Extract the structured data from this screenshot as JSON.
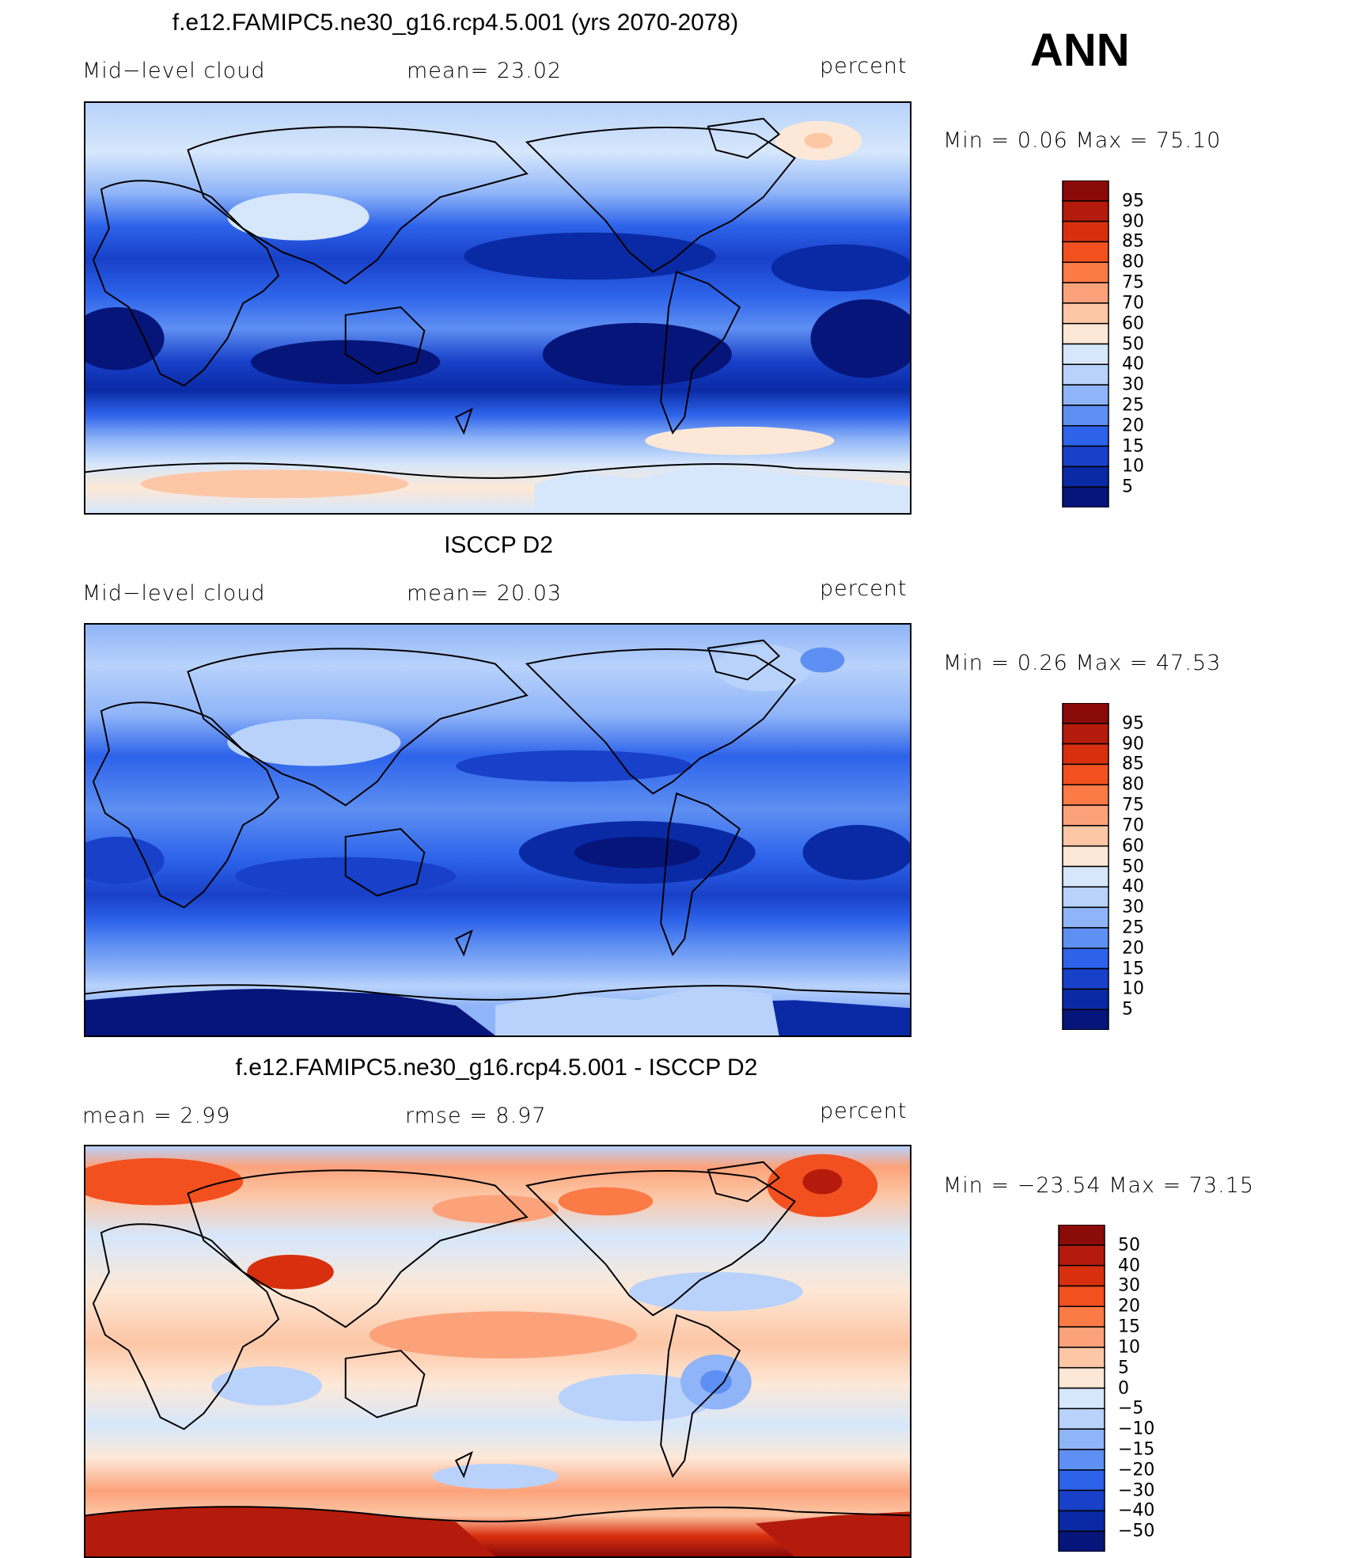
{
  "header": {
    "season": "ANN"
  },
  "panels": [
    {
      "id": "model",
      "title": "f.e12.FAMIPC5.ne30_g16.rcp4.5.001 (yrs 2070-2078)",
      "left_label": "Mid−level cloud",
      "center_label": "mean=   23.02",
      "units": "percent",
      "minmax": "Min  =    0.06  Max  =   75.10",
      "colorbar": {
        "labels": [
          "95",
          "90",
          "85",
          "80",
          "75",
          "70",
          "60",
          "50",
          "40",
          "30",
          "25",
          "20",
          "15",
          "10",
          "5"
        ],
        "colors": [
          "#8b0a0a",
          "#b41b0c",
          "#d8300e",
          "#f2501f",
          "#fb7a46",
          "#fca27a",
          "#fdc6a5",
          "#fde8d7",
          "#d6e7fb",
          "#b8d2fb",
          "#8fb4f8",
          "#5e8ff2",
          "#2d63ea",
          "#1840c8",
          "#0a2aa5",
          "#05157a"
        ]
      }
    },
    {
      "id": "obs",
      "title": "ISCCP D2",
      "left_label": "Mid−level cloud",
      "center_label": "mean=   20.03",
      "units": "percent",
      "minmax": "Min  =    0.26  Max  =   47.53",
      "colorbar": {
        "labels": [
          "95",
          "90",
          "85",
          "80",
          "75",
          "70",
          "60",
          "50",
          "40",
          "30",
          "25",
          "20",
          "15",
          "10",
          "5"
        ],
        "colors": [
          "#8b0a0a",
          "#b41b0c",
          "#d8300e",
          "#f2501f",
          "#fb7a46",
          "#fca27a",
          "#fdc6a5",
          "#fde8d7",
          "#d6e7fb",
          "#b8d2fb",
          "#8fb4f8",
          "#5e8ff2",
          "#2d63ea",
          "#1840c8",
          "#0a2aa5",
          "#05157a"
        ]
      }
    },
    {
      "id": "diff",
      "title": "f.e12.FAMIPC5.ne30_g16.rcp4.5.001 - ISCCP D2",
      "left_label": "mean  =     2.99",
      "center_label": "rmse  =     8.97",
      "units": "percent",
      "minmax": "Min  = −23.54  Max  =    73.15",
      "colorbar": {
        "labels": [
          "50",
          "40",
          "30",
          "20",
          "15",
          "10",
          "5",
          "0",
          "−5",
          "−10",
          "−15",
          "−20",
          "−30",
          "−40",
          "−50"
        ],
        "colors": [
          "#8b0a0a",
          "#b41b0c",
          "#d8300e",
          "#f2501f",
          "#fb7a46",
          "#fca27a",
          "#fdc6a5",
          "#fde8d7",
          "#d6e7fb",
          "#b8d2fb",
          "#8fb4f8",
          "#5e8ff2",
          "#2d63ea",
          "#1840c8",
          "#0a2aa5",
          "#05157a"
        ]
      }
    }
  ]
}
